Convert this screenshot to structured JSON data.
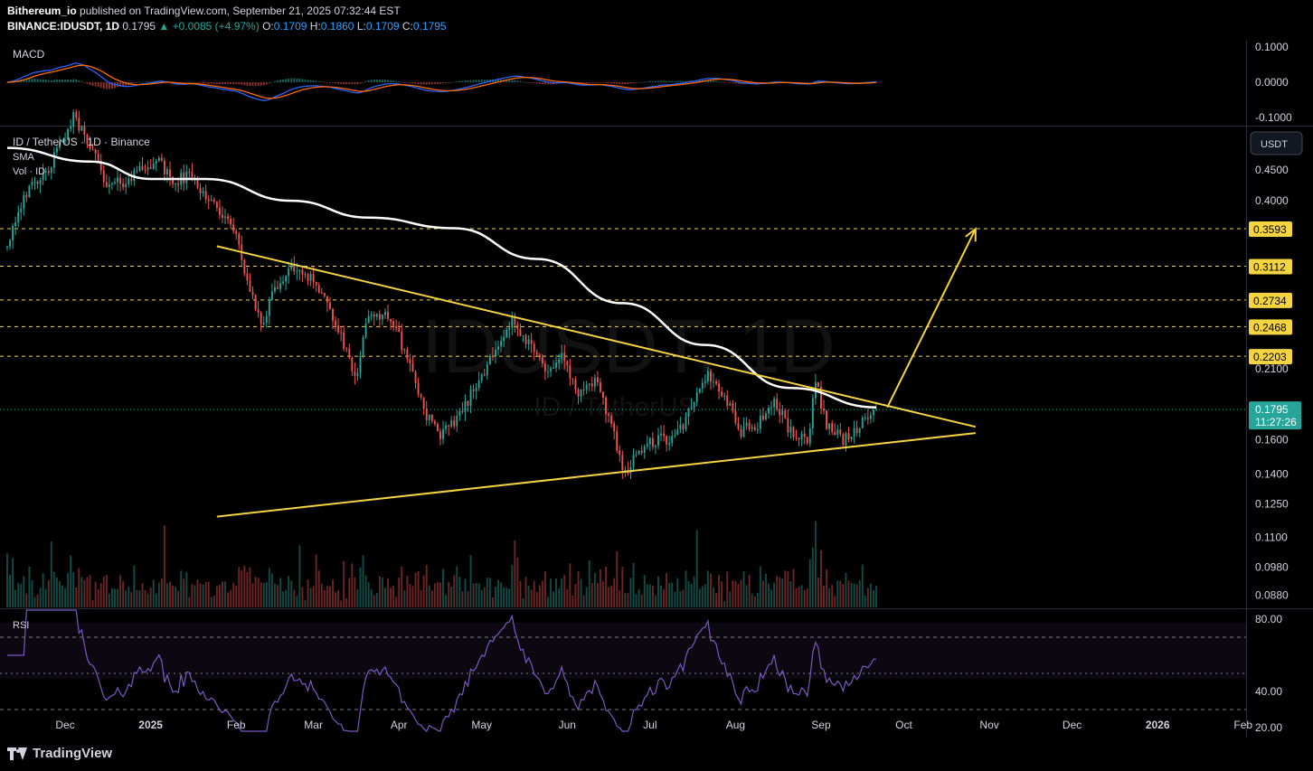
{
  "header": {
    "publisher": "Bithereum_io",
    "published_text": "published on TradingView.com, September 21, 2025 07:32:44 EST",
    "symbol": "BINANCE:IDUSDT, 1D",
    "last": "0.1795",
    "change": "+0.0085 (+4.97%)",
    "o_label": "O:",
    "o": "0.1709",
    "h_label": "H:",
    "h": "0.1860",
    "l_label": "L:",
    "l": "0.1709",
    "c_label": "C:",
    "c": "0.1795"
  },
  "panes": {
    "macd_label": "MACD",
    "price_title": "ID / TetherUS · 1D · Binance",
    "sma_label": "SMA",
    "vol_label": "Vol · ID",
    "rsi_label": "RSI",
    "currency_button": "USDT",
    "watermark_main": "IDUSDT, 1D",
    "watermark_sub": "ID / TetherUS"
  },
  "price_badge": {
    "price": "0.1795",
    "countdown": "11:27:26"
  },
  "footer": {
    "brand": "TradingView"
  },
  "colors": {
    "bull": "#26a69a",
    "bear": "#ef5350",
    "sma": "#ffffff",
    "trendline": "#f5d442",
    "rsi": "#7e57c2",
    "macd": "#2962ff",
    "signal": "#ff6d00"
  },
  "chart_data": [
    {
      "type": "line",
      "name": "MACD",
      "y_axis": [
        "0.1000",
        "0.0000",
        "-0.1000"
      ],
      "ylim": [
        -0.12,
        0.12
      ]
    },
    {
      "type": "candlestick",
      "title": "ID / TetherUS · 1D · Binance",
      "x_ticks": [
        "Dec",
        "2025",
        "Feb",
        "Mar",
        "Apr",
        "May",
        "Jun",
        "Jul",
        "Aug",
        "Sep",
        "Oct",
        "Nov",
        "Dec",
        "2026",
        "Feb"
      ],
      "y_ticks": [
        "0.4500",
        "0.4000",
        "0.2100",
        "0.1600",
        "0.1400",
        "0.1250",
        "0.1100",
        "0.0980",
        "0.0880"
      ],
      "y_scale": "log",
      "ylim": [
        0.084,
        0.53
      ],
      "levels": [
        "0.3593",
        "0.3112",
        "0.2734",
        "0.2468",
        "0.2203"
      ],
      "last_price": "0.1795",
      "close_path": [
        [
          "2024-11-10",
          0.34
        ],
        [
          "2024-11-16",
          0.41
        ],
        [
          "2024-11-22",
          0.43
        ],
        [
          "2024-11-28",
          0.48
        ],
        [
          "2024-12-04",
          0.55
        ],
        [
          "2024-12-10",
          0.5
        ],
        [
          "2024-12-16",
          0.42
        ],
        [
          "2024-12-22",
          0.43
        ],
        [
          "2024-12-28",
          0.45
        ],
        [
          "2025-01-03",
          0.47
        ],
        [
          "2025-01-09",
          0.43
        ],
        [
          "2025-01-15",
          0.44
        ],
        [
          "2025-01-21",
          0.41
        ],
        [
          "2025-01-27",
          0.38
        ],
        [
          "2025-02-02",
          0.34
        ],
        [
          "2025-02-06",
          0.28
        ],
        [
          "2025-02-10",
          0.25
        ],
        [
          "2025-02-16",
          0.29
        ],
        [
          "2025-02-22",
          0.31
        ],
        [
          "2025-02-28",
          0.3
        ],
        [
          "2025-03-06",
          0.27
        ],
        [
          "2025-03-12",
          0.23
        ],
        [
          "2025-03-16",
          0.2
        ],
        [
          "2025-03-20",
          0.25
        ],
        [
          "2025-03-28",
          0.26
        ],
        [
          "2025-04-04",
          0.22
        ],
        [
          "2025-04-10",
          0.18
        ],
        [
          "2025-04-16",
          0.16
        ],
        [
          "2025-04-24",
          0.18
        ],
        [
          "2025-04-30",
          0.2
        ],
        [
          "2025-05-06",
          0.23
        ],
        [
          "2025-05-12",
          0.25
        ],
        [
          "2025-05-18",
          0.23
        ],
        [
          "2025-05-24",
          0.21
        ],
        [
          "2025-05-30",
          0.22
        ],
        [
          "2025-06-05",
          0.19
        ],
        [
          "2025-06-11",
          0.2
        ],
        [
          "2025-06-17",
          0.17
        ],
        [
          "2025-06-22",
          0.14
        ],
        [
          "2025-06-28",
          0.155
        ],
        [
          "2025-07-04",
          0.16
        ],
        [
          "2025-07-10",
          0.16
        ],
        [
          "2025-07-16",
          0.18
        ],
        [
          "2025-07-22",
          0.205
        ],
        [
          "2025-07-28",
          0.19
        ],
        [
          "2025-08-03",
          0.165
        ],
        [
          "2025-08-09",
          0.17
        ],
        [
          "2025-08-15",
          0.185
        ],
        [
          "2025-08-21",
          0.165
        ],
        [
          "2025-08-27",
          0.158
        ],
        [
          "2025-08-30",
          0.2
        ],
        [
          "2025-09-03",
          0.17
        ],
        [
          "2025-09-09",
          0.16
        ],
        [
          "2025-09-15",
          0.168
        ],
        [
          "2025-09-21",
          0.1795
        ]
      ],
      "sma_path": [
        [
          "2024-11-10",
          0.49
        ],
        [
          "2024-12-10",
          0.465
        ],
        [
          "2025-01-01",
          0.435
        ],
        [
          "2025-01-21",
          0.435
        ],
        [
          "2025-02-21",
          0.4
        ],
        [
          "2025-03-21",
          0.375
        ],
        [
          "2025-04-21",
          0.36
        ],
        [
          "2025-05-21",
          0.32
        ],
        [
          "2025-06-21",
          0.27
        ],
        [
          "2025-07-21",
          0.23
        ],
        [
          "2025-08-21",
          0.195
        ],
        [
          "2025-09-21",
          0.181
        ]
      ],
      "trendlines": [
        {
          "name": "upper",
          "from": [
            "2025-01-25",
            0.336
          ],
          "to": [
            "2025-10-27",
            0.168
          ]
        },
        {
          "name": "lower",
          "from": [
            "2025-01-25",
            0.119
          ],
          "to": [
            "2025-10-27",
            0.164
          ]
        }
      ],
      "projection_arrow": {
        "from": [
          "2025-09-25",
          0.181
        ],
        "to": [
          "2025-10-27",
          0.359
        ]
      }
    },
    {
      "type": "line",
      "name": "RSI",
      "y_ticks": [
        "80.00",
        "40.00",
        "20.00"
      ],
      "bands": [
        70,
        30
      ],
      "ylim": [
        15,
        85
      ]
    }
  ]
}
